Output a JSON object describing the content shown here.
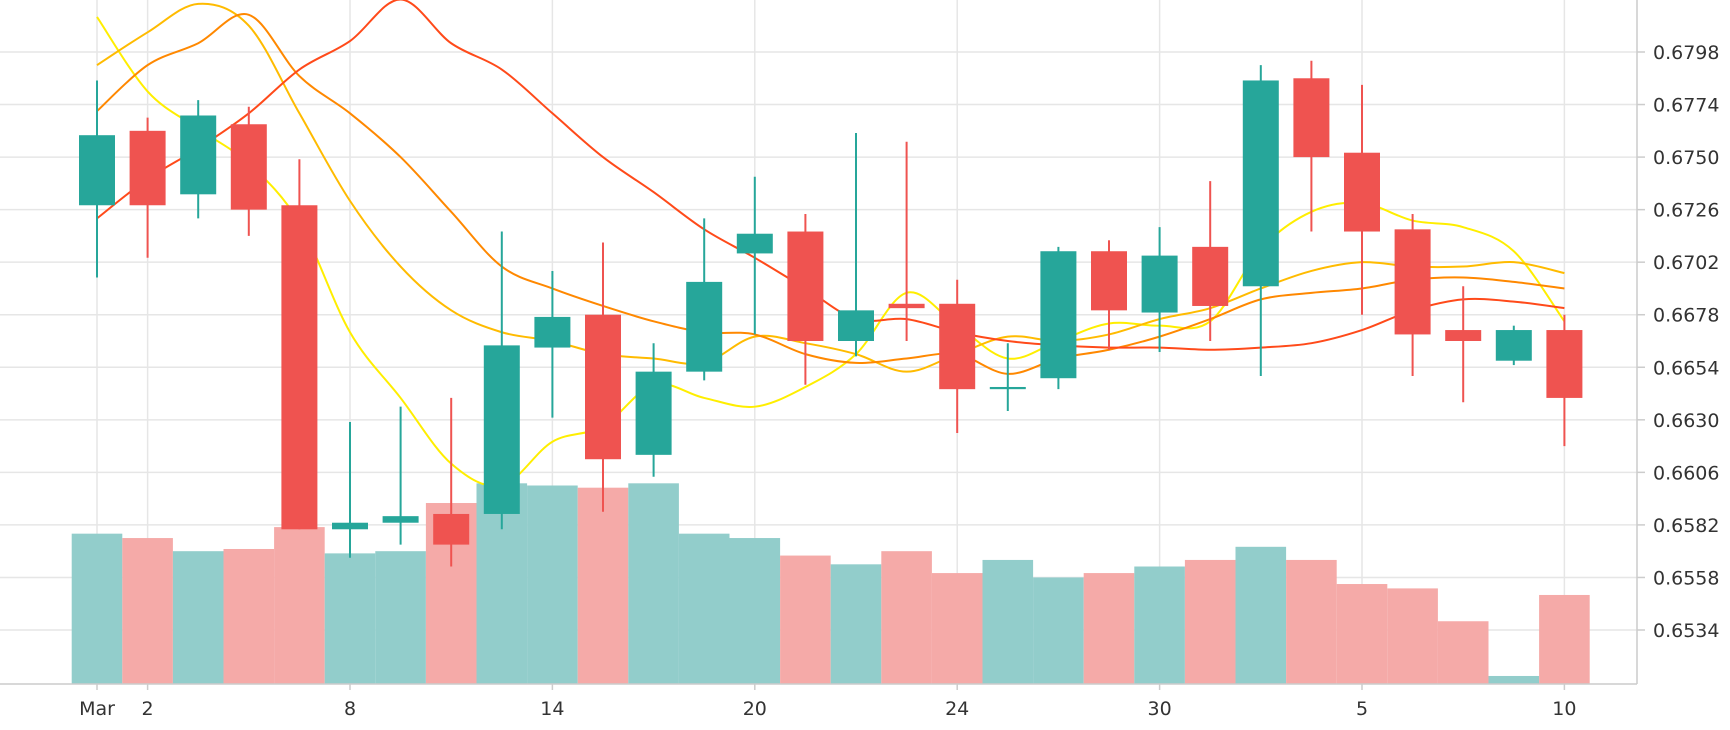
{
  "chart_data": {
    "type": "candlestick",
    "title": "",
    "xlabel": "",
    "ylabel": "",
    "y_range": [
      0.651,
      0.6822
    ],
    "y_ticks": [
      "0.6798",
      "0.6774",
      "0.6750",
      "0.6726",
      "0.6702",
      "0.6678",
      "0.6654",
      "0.6630",
      "0.6606",
      "0.6582",
      "0.6558",
      "0.6534"
    ],
    "x_ticks": [
      {
        "label": "Mar",
        "index": 0
      },
      {
        "label": "2",
        "index": 1
      },
      {
        "label": "8",
        "index": 5
      },
      {
        "label": "14",
        "index": 9
      },
      {
        "label": "20",
        "index": 13
      },
      {
        "label": "24",
        "index": 17
      },
      {
        "label": "30",
        "index": 21
      },
      {
        "label": "5",
        "index": 25
      },
      {
        "label": "10",
        "index": 29
      }
    ],
    "grid": true,
    "colors": {
      "up": "#26a69a",
      "down": "#ef5350",
      "volume_up": "#92cdcb",
      "volume_down": "#f5aaa8",
      "grid": "#e6e6e6",
      "ma_lines": [
        "#ffee00",
        "#ffbb00",
        "#ff8800",
        "#ff4a1a"
      ]
    },
    "candles": [
      {
        "open": 0.6728,
        "high": 0.6785,
        "low": 0.6695,
        "close": 0.676,
        "volume": 0.6578
      },
      {
        "open": 0.6762,
        "high": 0.6768,
        "low": 0.6704,
        "close": 0.6728,
        "volume": 0.6576
      },
      {
        "open": 0.6733,
        "high": 0.6776,
        "low": 0.6722,
        "close": 0.6769,
        "volume": 0.657
      },
      {
        "open": 0.6765,
        "high": 0.6773,
        "low": 0.6714,
        "close": 0.6726,
        "volume": 0.6571
      },
      {
        "open": 0.6728,
        "high": 0.6749,
        "low": 0.658,
        "close": 0.658,
        "volume": 0.6581
      },
      {
        "open": 0.658,
        "high": 0.6629,
        "low": 0.6567,
        "close": 0.6583,
        "volume": 0.6569
      },
      {
        "open": 0.6583,
        "high": 0.6636,
        "low": 0.6573,
        "close": 0.6586,
        "volume": 0.657
      },
      {
        "open": 0.6587,
        "high": 0.664,
        "low": 0.6563,
        "close": 0.6573,
        "volume": 0.6592
      },
      {
        "open": 0.6587,
        "high": 0.6716,
        "low": 0.658,
        "close": 0.6664,
        "volume": 0.6601
      },
      {
        "open": 0.6663,
        "high": 0.6698,
        "low": 0.6631,
        "close": 0.6677,
        "volume": 0.66
      },
      {
        "open": 0.6678,
        "high": 0.6711,
        "low": 0.6588,
        "close": 0.6612,
        "volume": 0.6599
      },
      {
        "open": 0.6614,
        "high": 0.6665,
        "low": 0.6604,
        "close": 0.6652,
        "volume": 0.6601
      },
      {
        "open": 0.6652,
        "high": 0.6722,
        "low": 0.6648,
        "close": 0.6693,
        "volume": 0.6578
      },
      {
        "open": 0.6706,
        "high": 0.6741,
        "low": 0.6669,
        "close": 0.6715,
        "volume": 0.6576
      },
      {
        "open": 0.6716,
        "high": 0.6724,
        "low": 0.6646,
        "close": 0.6666,
        "volume": 0.6568
      },
      {
        "open": 0.6666,
        "high": 0.6761,
        "low": 0.6659,
        "close": 0.668,
        "volume": 0.6564
      },
      {
        "open": 0.6683,
        "high": 0.6757,
        "low": 0.6666,
        "close": 0.6681,
        "volume": 0.657
      },
      {
        "open": 0.6683,
        "high": 0.6694,
        "low": 0.6624,
        "close": 0.6644,
        "volume": 0.656
      },
      {
        "open": 0.6644,
        "high": 0.6665,
        "low": 0.6634,
        "close": 0.6645,
        "volume": 0.6566
      },
      {
        "open": 0.6649,
        "high": 0.6709,
        "low": 0.6644,
        "close": 0.6707,
        "volume": 0.6558
      },
      {
        "open": 0.6707,
        "high": 0.6712,
        "low": 0.6662,
        "close": 0.668,
        "volume": 0.656
      },
      {
        "open": 0.6679,
        "high": 0.6718,
        "low": 0.6661,
        "close": 0.6705,
        "volume": 0.6563
      },
      {
        "open": 0.6709,
        "high": 0.6739,
        "low": 0.6666,
        "close": 0.6682,
        "volume": 0.6566
      },
      {
        "open": 0.6691,
        "high": 0.6792,
        "low": 0.665,
        "close": 0.6785,
        "volume": 0.6572
      },
      {
        "open": 0.6786,
        "high": 0.6794,
        "low": 0.6716,
        "close": 0.675,
        "volume": 0.6566
      },
      {
        "open": 0.6752,
        "high": 0.6783,
        "low": 0.6678,
        "close": 0.6716,
        "volume": 0.6555
      },
      {
        "open": 0.6717,
        "high": 0.6724,
        "low": 0.665,
        "close": 0.6669,
        "volume": 0.6553
      },
      {
        "open": 0.6671,
        "high": 0.6691,
        "low": 0.6638,
        "close": 0.6666,
        "volume": 0.6538
      },
      {
        "open": 0.6657,
        "high": 0.6673,
        "low": 0.6655,
        "close": 0.6671,
        "volume": 0.6513
      },
      {
        "open": 0.6671,
        "high": 0.6678,
        "low": 0.6618,
        "close": 0.664,
        "volume": 0.655
      }
    ],
    "moving_averages": [
      {
        "color": "#ffee00",
        "values": [
          0.6814,
          0.678,
          0.6763,
          0.6747,
          0.672,
          0.667,
          0.664,
          0.661,
          0.66,
          0.662,
          0.6627,
          0.6646,
          0.664,
          0.6636,
          0.6645,
          0.666,
          0.6688,
          0.6673,
          0.6658,
          0.6666,
          0.6674,
          0.6673,
          0.6675,
          0.6708,
          0.6725,
          0.6729,
          0.6721,
          0.6718,
          0.6707,
          0.6675
        ]
      },
      {
        "color": "#ffbb00",
        "values": [
          0.6792,
          0.6807,
          0.682,
          0.681,
          0.677,
          0.673,
          0.67,
          0.668,
          0.667,
          0.6666,
          0.666,
          0.6658,
          0.6656,
          0.6668,
          0.6665,
          0.666,
          0.6652,
          0.666,
          0.6668,
          0.6666,
          0.6669,
          0.6676,
          0.6681,
          0.669,
          0.6698,
          0.6702,
          0.67,
          0.67,
          0.6702,
          0.6697
        ]
      },
      {
        "color": "#ff8800",
        "values": [
          0.6771,
          0.6792,
          0.6802,
          0.6815,
          0.6787,
          0.677,
          0.675,
          0.6725,
          0.67,
          0.669,
          0.6682,
          0.6675,
          0.667,
          0.6669,
          0.666,
          0.6656,
          0.6658,
          0.666,
          0.6651,
          0.6658,
          0.6662,
          0.6668,
          0.6676,
          0.6685,
          0.6688,
          0.669,
          0.6694,
          0.6695,
          0.6693,
          0.669
        ]
      },
      {
        "color": "#ff4a1a",
        "values": [
          0.6722,
          0.674,
          0.6754,
          0.677,
          0.679,
          0.6803,
          0.6822,
          0.6802,
          0.679,
          0.677,
          0.675,
          0.6734,
          0.6717,
          0.6704,
          0.669,
          0.6676,
          0.6676,
          0.667,
          0.6666,
          0.6664,
          0.6663,
          0.6663,
          0.6662,
          0.6663,
          0.6665,
          0.6671,
          0.668,
          0.6685,
          0.6684,
          0.6681
        ]
      }
    ]
  }
}
